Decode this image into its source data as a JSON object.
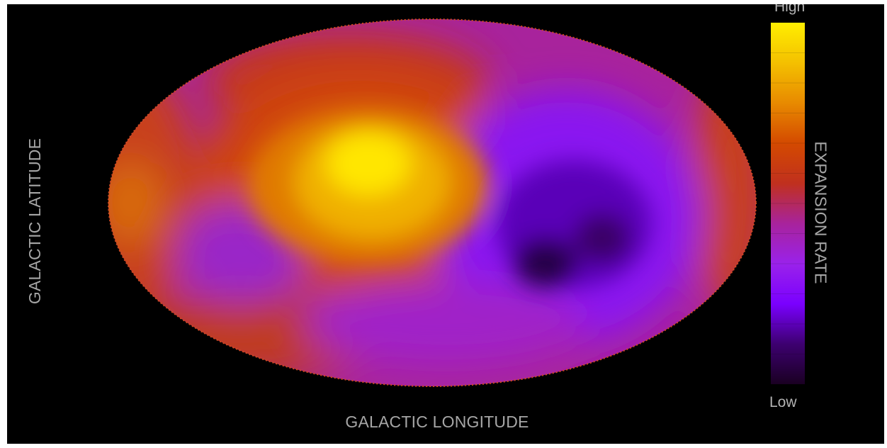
{
  "chart_data": {
    "type": "heatmap",
    "projection": "mollweide",
    "title": "",
    "xlabel": "GALACTIC LONGITUDE",
    "ylabel": "GALACTIC LATITUDE",
    "colorbar": {
      "label": "EXPANSION RATE",
      "high_label": "High",
      "low_label": "Low",
      "colormap": [
        "#1a0022",
        "#3d0070",
        "#7a00ff",
        "#9a22ea",
        "#a8239c",
        "#c0301e",
        "#d44a00",
        "#e88a00",
        "#f4c000",
        "#ffee00"
      ]
    },
    "regions": [
      {
        "name": "hot-spot-core",
        "level": 1.0
      },
      {
        "name": "warm-halo",
        "level": 0.72
      },
      {
        "name": "left-edge-warm",
        "level": 0.62
      },
      {
        "name": "right-edge-warm",
        "level": 0.58
      },
      {
        "name": "purple-lobe",
        "level": 0.3
      },
      {
        "name": "cold-spot-core",
        "level": 0.02
      }
    ]
  },
  "colors": {
    "background": "#000000",
    "label_gray": "#a6a6a6"
  }
}
